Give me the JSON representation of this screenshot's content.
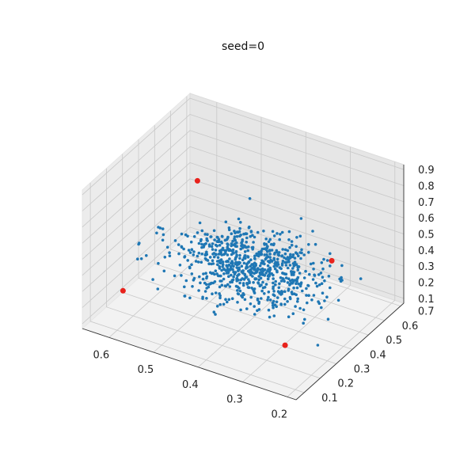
{
  "chart_data": {
    "type": "scatter",
    "projection": "3d",
    "title": "seed=0",
    "xlabel": "",
    "ylabel": "",
    "zlabel": "",
    "xlim": [
      0.18,
      0.66
    ],
    "ylim": [
      0.05,
      0.72
    ],
    "zlim": [
      0.07,
      0.93
    ],
    "x_ticks": [
      "0.2",
      "0.3",
      "0.4",
      "0.5",
      "0.6"
    ],
    "y_ticks": [
      "0.1",
      "0.2",
      "0.3",
      "0.4",
      "0.5",
      "0.6",
      "0.7"
    ],
    "z_ticks": [
      "0.1",
      "0.2",
      "0.3",
      "0.4",
      "0.5",
      "0.6",
      "0.7",
      "0.8",
      "0.9"
    ],
    "grid": true,
    "series": [
      {
        "role": "cloud",
        "color": "#1f77b4",
        "marker": "small dot",
        "count": 800,
        "x_center": 0.4,
        "x_spread": 0.08,
        "y_center": 0.38,
        "y_spread": 0.09,
        "z_center": 0.4,
        "z_spread": 0.07
      },
      {
        "role": "highlighted",
        "color": "#e8221c",
        "marker": "larger dot",
        "points": [
          {
            "x": 0.19,
            "y": 0.3,
            "z": 0.7
          },
          {
            "x": 0.6,
            "y": 0.6,
            "z": 0.55
          },
          {
            "x": 0.23,
            "y": 0.12,
            "z": 0.3
          },
          {
            "x": 0.63,
            "y": 0.22,
            "z": 0.18
          }
        ]
      }
    ]
  }
}
